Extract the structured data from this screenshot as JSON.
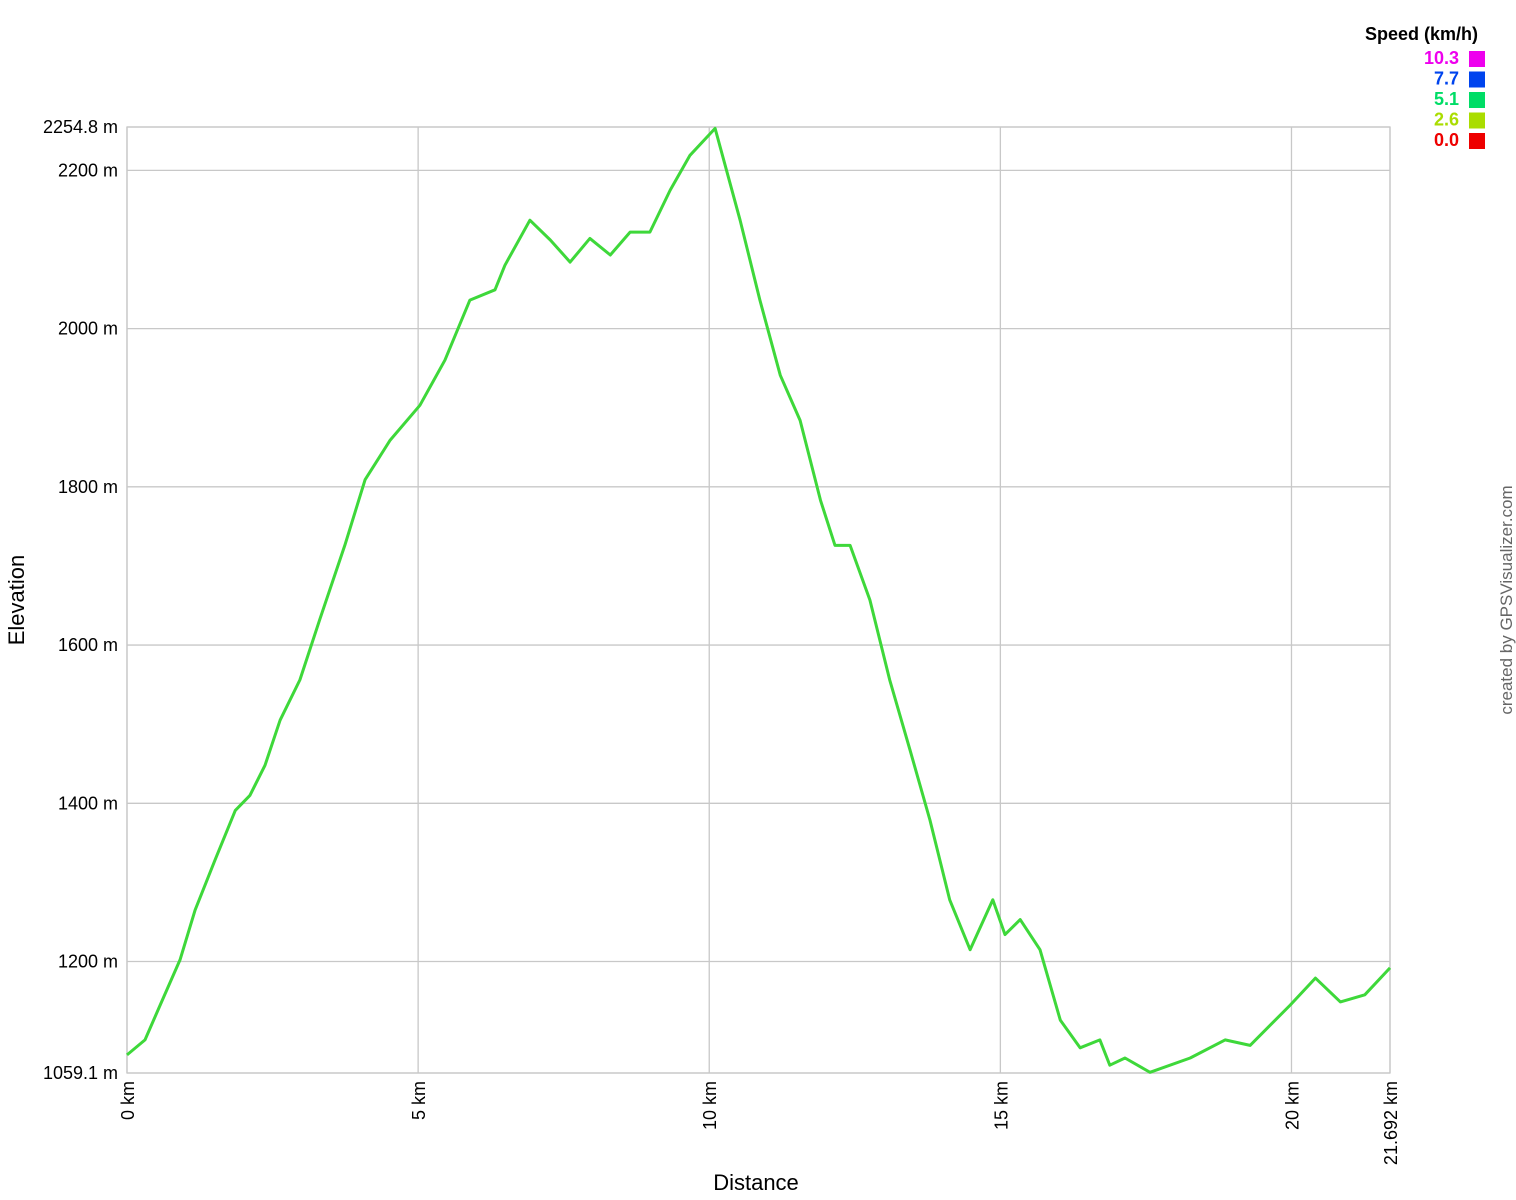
{
  "chart_data": {
    "type": "line",
    "x_label": "Distance",
    "y_label": "Elevation",
    "credit": "created by GPSVisualizer.com",
    "color": "#3ed83a",
    "x": [
      0,
      0.31,
      0.57,
      0.91,
      1.17,
      1.51,
      1.86,
      2.11,
      2.37,
      2.63,
      2.97,
      3.31,
      3.74,
      4.09,
      4.52,
      5.03,
      5.46,
      5.89,
      6.32,
      6.49,
      6.92,
      7.27,
      7.61,
      7.95,
      8.3,
      8.64,
      8.98,
      9.33,
      9.67,
      10.1,
      10.53,
      10.87,
      11.22,
      11.56,
      11.91,
      12.16,
      12.42,
      12.76,
      13.1,
      13.45,
      13.79,
      14.13,
      14.48,
      14.87,
      15.08,
      15.34,
      15.68,
      16.03,
      16.37,
      16.71,
      16.88,
      17.14,
      17.57,
      18.26,
      18.86,
      19.29,
      19.98,
      20.41,
      20.84,
      21.26,
      21.692
    ],
    "values": [
      1082,
      1101,
      1145,
      1202,
      1265,
      1328,
      1391,
      1410,
      1448,
      1505,
      1556,
      1632,
      1726,
      1809,
      1859,
      1903,
      1960,
      2036,
      2049,
      2080,
      2137,
      2112,
      2084,
      2114,
      2093,
      2122,
      2122,
      2175,
      2219,
      2253,
      2137,
      2036,
      1941,
      1884,
      1783,
      1726,
      1726,
      1657,
      1556,
      1467,
      1379,
      1278,
      1215,
      1278,
      1234,
      1253,
      1215,
      1126,
      1091,
      1101,
      1069,
      1078,
      1060,
      1078,
      1101,
      1094,
      1145,
      1179,
      1149,
      1158,
      1192
    ],
    "xlim": [
      0,
      21.692
    ],
    "xticks": [
      {
        "value": 0,
        "label": "0 km"
      },
      {
        "value": 5,
        "label": "5 km"
      },
      {
        "value": 10,
        "label": "10 km"
      },
      {
        "value": 15,
        "label": "15 km"
      },
      {
        "value": 20,
        "label": "20 km"
      },
      {
        "value": 21.692,
        "label": "21.692 km"
      }
    ],
    "ylim": [
      1059.1,
      2254.8
    ],
    "yticks": [
      {
        "value": 1059.1,
        "label": "1059.1 m"
      },
      {
        "value": 1200,
        "label": "1200 m"
      },
      {
        "value": 1400,
        "label": "1400 m"
      },
      {
        "value": 1600,
        "label": "1600 m"
      },
      {
        "value": 1800,
        "label": "1800 m"
      },
      {
        "value": 2000,
        "label": "2000 m"
      },
      {
        "value": 2200,
        "label": "2200 m"
      },
      {
        "value": 2254.8,
        "label": "2254.8 m"
      }
    ],
    "grid": true,
    "color_scale": {
      "title": "Speed (km/h)",
      "position": "top-right",
      "stops": [
        10.3,
        7.7,
        5.1,
        2.6,
        {
          "value": 0,
          "label": "0.0"
        }
      ],
      "colors": [
        "#ee00ee",
        "#0044ee",
        "#00dd66",
        "#aadd00",
        "#ee0000"
      ]
    }
  }
}
